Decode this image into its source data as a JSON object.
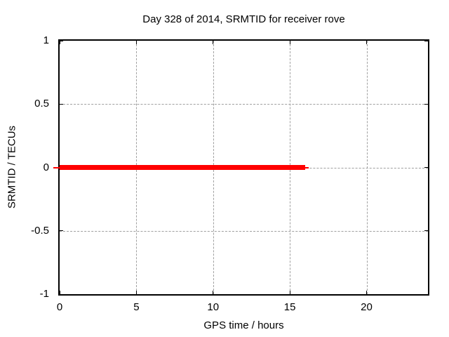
{
  "chart_data": {
    "type": "line",
    "title": "Day 328 of 2014, SRMTID for receiver rove",
    "xlabel": "GPS time / hours",
    "ylabel": "SRMTID / TECUs",
    "xlim": [
      0,
      24
    ],
    "ylim": [
      -1,
      1
    ],
    "xticks": [
      0,
      5,
      10,
      15,
      20
    ],
    "yticks": [
      1,
      0.5,
      0,
      -0.5,
      -1
    ],
    "xtick_labels": [
      "0",
      "5",
      "10",
      "15",
      "20"
    ],
    "ytick_labels": [
      "1",
      "0.5",
      "0",
      "-0.5",
      "-1"
    ],
    "grid": true,
    "legend_position": "none",
    "series": [
      {
        "name": "SRMTID",
        "color": "#ff0000",
        "style": "thick-horizontal-segment",
        "y_value": 0,
        "x_start": 0,
        "x_end": 16,
        "points": [
          [
            0,
            0
          ],
          [
            16,
            0
          ]
        ]
      }
    ]
  },
  "colors": {
    "series_red": "#ff0000",
    "grid_gray": "#a0a0a0",
    "border_black": "#000000",
    "background": "#ffffff",
    "text": "#000000"
  }
}
